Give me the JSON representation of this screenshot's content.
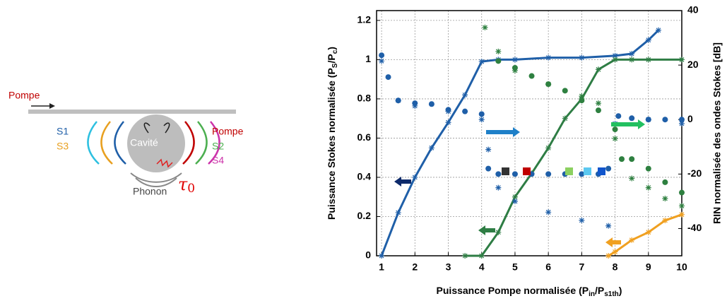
{
  "diagram": {
    "pump_in": "Pompe",
    "s1": "S1",
    "s3": "S3",
    "cavity": "Cavité",
    "pump_out": "Pompe",
    "s2": "S2",
    "s4": "S4",
    "phonon": "Phonon",
    "tau": [
      "τ",
      "0"
    ]
  },
  "chart_data": {
    "type": "line",
    "xlabel": [
      "Puissance Pompe normalisée  (P",
      "in",
      "/P",
      "s1th",
      ")"
    ],
    "ylabel": [
      "Puissance Stokes normalisée (P",
      "S",
      "/P",
      "c",
      ")"
    ],
    "y2label": "RIN normalisée des ondes Stokes [dB]",
    "xlim": [
      0.85,
      10
    ],
    "xticks": [
      1,
      2,
      3,
      4,
      5,
      6,
      7,
      8,
      9,
      10
    ],
    "ylim": [
      0,
      1.25
    ],
    "yticks": [
      0,
      0.2,
      0.4,
      0.6,
      0.8,
      1,
      1.2
    ],
    "y2lim": [
      -50,
      40
    ],
    "y2ticks": [
      -40,
      -20,
      0,
      20,
      40
    ],
    "grid": true,
    "series": [
      {
        "color": "#1f5fa8",
        "line": true,
        "marker": "star",
        "x": [
          1,
          1.5,
          2,
          2.5,
          3,
          3.5,
          4,
          4.5,
          5,
          6,
          7,
          8,
          8.5,
          9,
          9.3
        ],
        "values": [
          0,
          0.22,
          0.4,
          0.55,
          0.68,
          0.82,
          0.99,
          1.0,
          1.0,
          1.01,
          1.01,
          1.02,
          1.03,
          1.1,
          1.15
        ]
      },
      {
        "color": "#2e7d44",
        "line": true,
        "marker": "star",
        "x": [
          3.5,
          4,
          4.5,
          5,
          5.5,
          6,
          6.5,
          7,
          7.5,
          8,
          8.5,
          9,
          10
        ],
        "values": [
          0,
          0,
          0.12,
          0.3,
          0.42,
          0.55,
          0.7,
          0.8,
          0.95,
          1.0,
          1.0,
          1.0,
          1.0
        ]
      },
      {
        "color": "#f0a020",
        "line": true,
        "marker": "star",
        "x": [
          7.8,
          8,
          8.5,
          9,
          9.5,
          10
        ],
        "values": [
          0,
          0.02,
          0.08,
          0.12,
          0.18,
          0.21
        ]
      },
      {
        "color": "#1f5fa8",
        "axis": "y2",
        "line": false,
        "marker": "circle",
        "x": [
          1,
          1.2,
          1.5,
          2,
          2.5,
          3,
          3.5,
          4,
          4.2,
          4.5,
          5,
          5.5,
          6,
          6.5,
          7,
          7.5,
          7.8,
          8.1,
          8.5,
          9,
          9.5,
          10
        ],
        "values": [
          23.6,
          15.6,
          7,
          6,
          5.7,
          3.6,
          3,
          2,
          -18,
          -20,
          -20,
          -20,
          -20,
          -20,
          -20,
          -20,
          -18,
          1.3,
          0.5,
          0,
          0,
          0
        ]
      },
      {
        "color": "#1f5fa8",
        "axis": "y2",
        "line": false,
        "marker": "star",
        "x": [
          1,
          1.5,
          2,
          3,
          4,
          4.2,
          4.5,
          5,
          6,
          7,
          7.8,
          8,
          9,
          10
        ],
        "values": [
          21.5,
          7,
          5,
          3,
          0,
          -11,
          -25,
          -30,
          -34,
          -37,
          -39,
          -1.5,
          0,
          -1.5
        ]
      },
      {
        "color": "#2e8040",
        "axis": "y2",
        "line": false,
        "marker": "circle",
        "x": [
          4.5,
          5,
          5.5,
          6,
          6.5,
          7,
          7.5,
          8,
          8.2,
          8.5,
          9,
          9.5,
          10
        ],
        "values": [
          21.5,
          19,
          16,
          13,
          10.6,
          7,
          3.4,
          -3.6,
          -14.5,
          -14.5,
          -18,
          -23,
          -26.8
        ]
      },
      {
        "color": "#2e8040",
        "axis": "y2",
        "line": false,
        "marker": "star",
        "x": [
          4.1,
          4.5,
          5,
          6,
          7,
          7.5,
          8,
          8.5,
          9,
          9.5,
          10
        ],
        "values": [
          33.8,
          25,
          18,
          13,
          8.6,
          6,
          -7,
          -21.6,
          -25,
          -29,
          -31.7
        ]
      }
    ]
  }
}
